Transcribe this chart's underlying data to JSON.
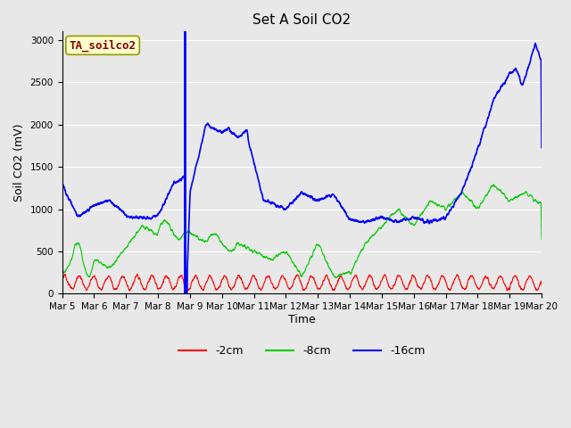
{
  "title": "Set A Soil CO2",
  "ylabel": "Soil CO2 (mV)",
  "xlabel": "Time",
  "annotation": "TA_soilco2",
  "legend_labels": [
    "-2cm",
    "-8cm",
    "-16cm"
  ],
  "legend_colors": [
    "#ff0000",
    "#00cc00",
    "#0000ff"
  ],
  "background_color": "#e8e8e8",
  "plot_bg_color": "#e8e8e8",
  "ylim": [
    0,
    3100
  ],
  "yticks": [
    0,
    500,
    1000,
    1500,
    2000,
    2500,
    3000
  ],
  "xstart": 0,
  "xend": 15,
  "num_points": 3000,
  "vline_x": 3.85,
  "title_fontsize": 11,
  "axis_label_fontsize": 9,
  "tick_fontsize": 7.5,
  "annotation_fontsize": 9
}
